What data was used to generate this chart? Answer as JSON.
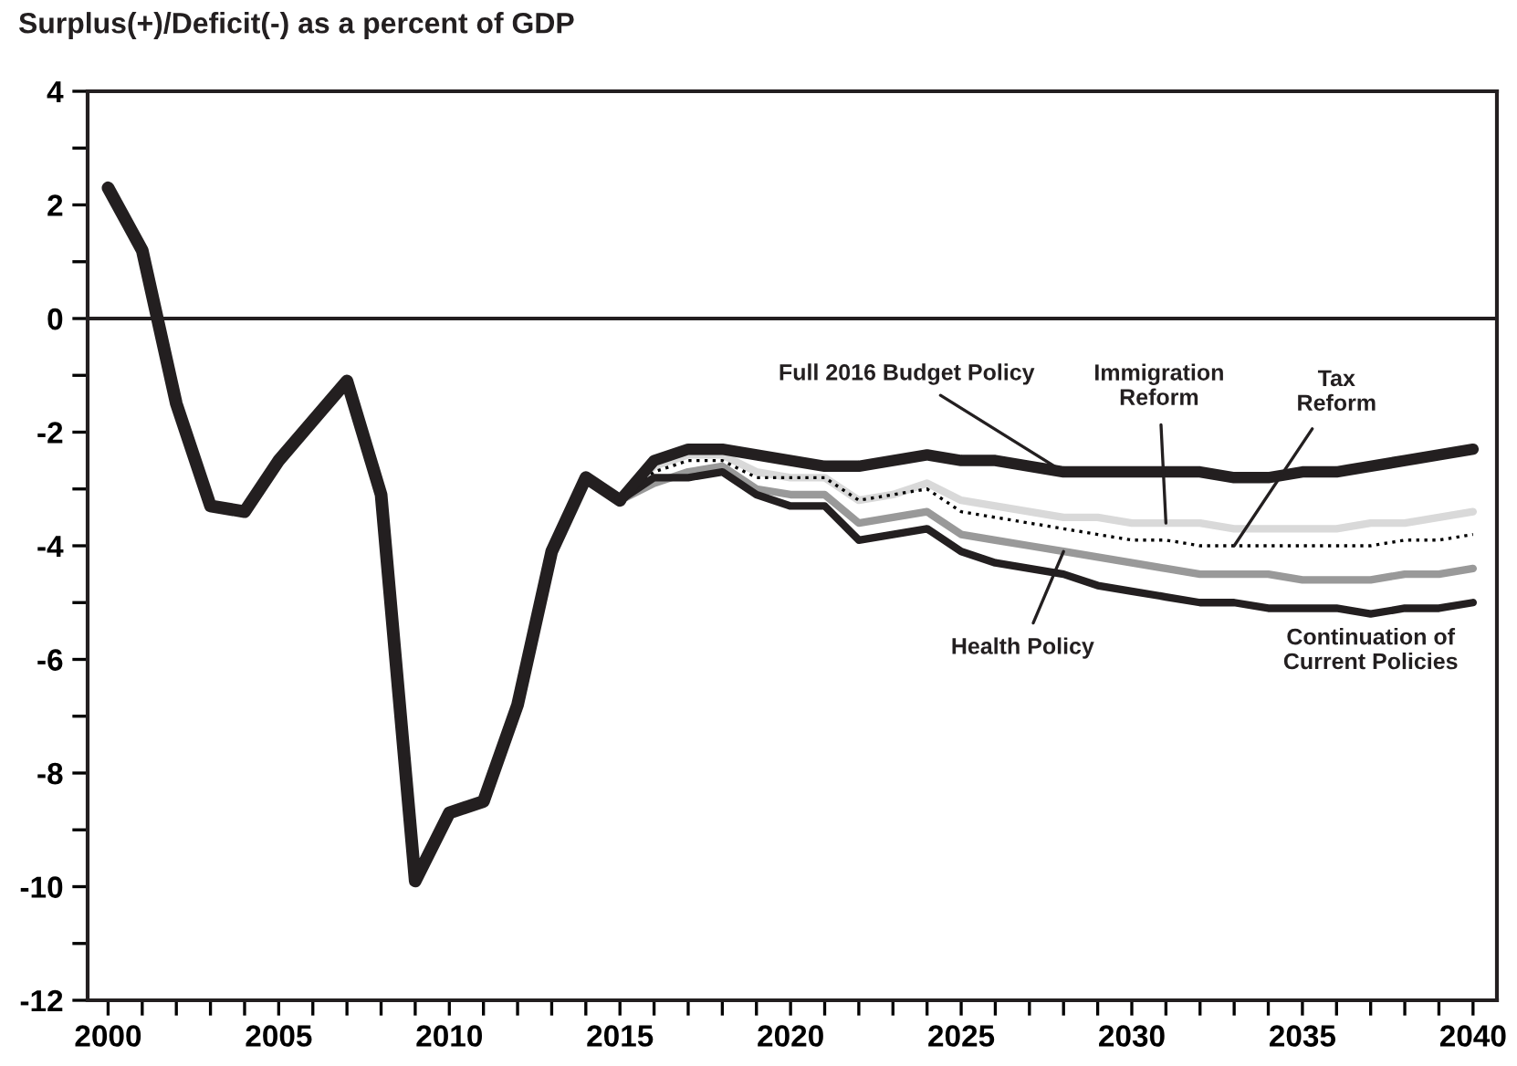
{
  "chart_data": {
    "type": "line",
    "title": "Surplus(+)/Deficit(-) as a percent of GDP",
    "series": [
      {
        "color": "#231f20",
        "x": [
          2000,
          2001,
          2002,
          2003,
          2004,
          2005,
          2006,
          2007,
          2008,
          2009,
          2010,
          2011,
          2012,
          2013,
          2014,
          2015
        ],
        "values": [
          2.3,
          1.2,
          -1.5,
          -3.3,
          -3.4,
          -2.5,
          -1.8,
          -1.1,
          -3.1,
          -9.9,
          -8.7,
          -8.5,
          -6.8,
          -4.1,
          -2.8,
          -3.2
        ]
      },
      {
        "name": "Continuation of\nCurrent Policies",
        "color": "#231f20",
        "x": [
          2015,
          2016,
          2017,
          2018,
          2019,
          2020,
          2021,
          2022,
          2023,
          2024,
          2025,
          2026,
          2027,
          2028,
          2029,
          2030,
          2031,
          2032,
          2033,
          2034,
          2035,
          2036,
          2037,
          2038,
          2039,
          2040
        ],
        "values": [
          -3.2,
          -2.8,
          -2.8,
          -2.7,
          -3.1,
          -3.3,
          -3.3,
          -3.9,
          -3.8,
          -3.7,
          -4.1,
          -4.3,
          -4.4,
          -4.5,
          -4.7,
          -4.8,
          -4.9,
          -5.0,
          -5.0,
          -5.1,
          -5.1,
          -5.1,
          -5.2,
          -5.1,
          -5.1,
          -5.0
        ]
      },
      {
        "name": "Health Policy",
        "color": "#999999",
        "x": [
          2015,
          2016,
          2017,
          2018,
          2019,
          2020,
          2021,
          2022,
          2023,
          2024,
          2025,
          2026,
          2027,
          2028,
          2029,
          2030,
          2031,
          2032,
          2033,
          2034,
          2035,
          2036,
          2037,
          2038,
          2039,
          2040
        ],
        "values": [
          -3.2,
          -2.9,
          -2.7,
          -2.6,
          -3.0,
          -3.1,
          -3.1,
          -3.6,
          -3.5,
          -3.4,
          -3.8,
          -3.9,
          -4.0,
          -4.1,
          -4.2,
          -4.3,
          -4.4,
          -4.5,
          -4.5,
          -4.5,
          -4.6,
          -4.6,
          -4.6,
          -4.5,
          -4.5,
          -4.4
        ]
      },
      {
        "name": "Tax\nReform",
        "color": "#000000",
        "line_style": "dotted",
        "x": [
          2015,
          2016,
          2017,
          2018,
          2019,
          2020,
          2021,
          2022,
          2023,
          2024,
          2025,
          2026,
          2027,
          2028,
          2029,
          2030,
          2031,
          2032,
          2033,
          2034,
          2035,
          2036,
          2037,
          2038,
          2039,
          2040
        ],
        "values": [
          -3.2,
          -2.7,
          -2.5,
          -2.5,
          -2.8,
          -2.8,
          -2.8,
          -3.2,
          -3.1,
          -3.0,
          -3.4,
          -3.5,
          -3.6,
          -3.7,
          -3.8,
          -3.9,
          -3.9,
          -4.0,
          -4.0,
          -4.0,
          -4.0,
          -4.0,
          -4.0,
          -3.9,
          -3.9,
          -3.8
        ]
      },
      {
        "name": "Immigration\nReform",
        "color": "#d9d9d9",
        "x": [
          2015,
          2016,
          2017,
          2018,
          2019,
          2020,
          2021,
          2022,
          2023,
          2024,
          2025,
          2026,
          2027,
          2028,
          2029,
          2030,
          2031,
          2032,
          2033,
          2034,
          2035,
          2036,
          2037,
          2038,
          2039,
          2040
        ],
        "values": [
          -3.2,
          -2.6,
          -2.4,
          -2.4,
          -2.7,
          -2.8,
          -2.8,
          -3.2,
          -3.1,
          -2.9,
          -3.2,
          -3.3,
          -3.4,
          -3.5,
          -3.5,
          -3.6,
          -3.6,
          -3.6,
          -3.7,
          -3.7,
          -3.7,
          -3.7,
          -3.6,
          -3.6,
          -3.5,
          -3.4
        ]
      },
      {
        "name": "Full 2016 Budget Policy",
        "color": "#231f20",
        "x": [
          2015,
          2016,
          2017,
          2018,
          2019,
          2020,
          2021,
          2022,
          2023,
          2024,
          2025,
          2026,
          2027,
          2028,
          2029,
          2030,
          2031,
          2032,
          2033,
          2034,
          2035,
          2036,
          2037,
          2038,
          2039,
          2040
        ],
        "values": [
          -3.2,
          -2.5,
          -2.3,
          -2.3,
          -2.4,
          -2.5,
          -2.6,
          -2.6,
          -2.5,
          -2.4,
          -2.5,
          -2.5,
          -2.6,
          -2.7,
          -2.7,
          -2.7,
          -2.7,
          -2.7,
          -2.8,
          -2.8,
          -2.7,
          -2.7,
          -2.6,
          -2.5,
          -2.4,
          -2.3
        ]
      }
    ],
    "xlim": [
      1999.4,
      2040.7
    ],
    "ylim": [
      -12,
      4
    ],
    "xticks": [
      2000,
      {
        "value": 2001,
        "label": null
      },
      {
        "value": 2002,
        "label": null
      },
      {
        "value": 2003,
        "label": null
      },
      {
        "value": 2004,
        "label": null
      },
      2005,
      {
        "value": 2006,
        "label": null
      },
      {
        "value": 2007,
        "label": null
      },
      {
        "value": 2008,
        "label": null
      },
      {
        "value": 2009,
        "label": null
      },
      2010,
      {
        "value": 2011,
        "label": null
      },
      {
        "value": 2012,
        "label": null
      },
      {
        "value": 2013,
        "label": null
      },
      {
        "value": 2014,
        "label": null
      },
      2015,
      {
        "value": 2016,
        "label": null
      },
      {
        "value": 2017,
        "label": null
      },
      {
        "value": 2018,
        "label": null
      },
      {
        "value": 2019,
        "label": null
      },
      2020,
      {
        "value": 2021,
        "label": null
      },
      {
        "value": 2022,
        "label": null
      },
      {
        "value": 2023,
        "label": null
      },
      {
        "value": 2024,
        "label": null
      },
      2025,
      {
        "value": 2026,
        "label": null
      },
      {
        "value": 2027,
        "label": null
      },
      {
        "value": 2028,
        "label": null
      },
      {
        "value": 2029,
        "label": null
      },
      2030,
      {
        "value": 2031,
        "label": null
      },
      {
        "value": 2032,
        "label": null
      },
      {
        "value": 2033,
        "label": null
      },
      {
        "value": 2034,
        "label": null
      },
      2035,
      {
        "value": 2036,
        "label": null
      },
      {
        "value": 2037,
        "label": null
      },
      {
        "value": 2038,
        "label": null
      },
      {
        "value": 2039,
        "label": null
      },
      2040
    ],
    "yticks": [
      -12,
      {
        "value": -11,
        "label": null
      },
      -10,
      {
        "value": -9,
        "label": null
      },
      -8,
      {
        "value": -7,
        "label": null
      },
      -6,
      {
        "value": -5,
        "label": null
      },
      -4,
      {
        "value": -3,
        "label": null
      },
      -2,
      {
        "value": -1,
        "label": null
      },
      0,
      {
        "value": 1,
        "label": null
      },
      2,
      {
        "value": 3,
        "label": null
      },
      4
    ],
    "ref_lines": [
      {
        "axis": "y",
        "value": 0,
        "color": "#231f20"
      }
    ],
    "grid": false,
    "legend": false
  }
}
